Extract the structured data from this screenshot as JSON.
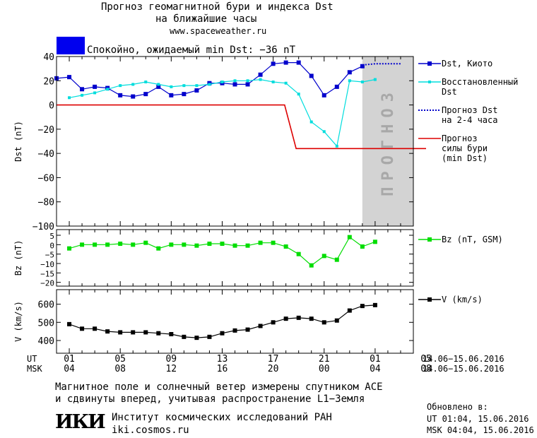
{
  "header": {
    "title1": "Прогноз геомагнитной бури и индекса Dst",
    "title2": "на ближайшие часы",
    "site": "www.spaceweather.ru",
    "status": "Спокойно, ожидаемый min Dst: −36 nT",
    "status_color": "#0000ee"
  },
  "footer": {
    "note1": "Магнитное поле и солнечный ветер измерены спутником ACE",
    "note2": "и сдвинуты вперед, учитывая распространение L1−Земля",
    "logo": "ИКИ",
    "institute": "Институт космических исследований РАН",
    "institute_site": "iki.cosmos.ru",
    "updated_label": "Обновлено в:",
    "updated_ut": "UT  01:04, 15.06.2016",
    "updated_msk": "MSK 04:04, 15.06.2016"
  },
  "chart_data": {
    "type": "line",
    "forecast_label": "ПРОГНОЗ",
    "time_axis": {
      "ut_label": "UT",
      "msk_label": "MSK",
      "ut_ticks": [
        "01",
        "05",
        "09",
        "13",
        "17",
        "21",
        "01",
        "05"
      ],
      "msk_ticks": [
        "04",
        "08",
        "12",
        "16",
        "20",
        "00",
        "04",
        "08"
      ],
      "range_text": "14.06−15.06.2016",
      "hour_range": [
        0,
        28
      ],
      "forecast_start_hour": 24
    },
    "panels": [
      {
        "ylabel": "Dst (nT)",
        "ylim": [
          -100,
          40
        ],
        "yticks": [
          -100,
          -80,
          -60,
          -40,
          -20,
          0,
          20,
          40
        ],
        "series": [
          {
            "name": "Dst, Киото",
            "color": "#0000cc",
            "style": "solid-square",
            "x": [
              0,
              1,
              2,
              3,
              4,
              5,
              6,
              7,
              8,
              9,
              10,
              11,
              12,
              13,
              14,
              15,
              16,
              17,
              18,
              19,
              20,
              21,
              22,
              23,
              24
            ],
            "values": [
              22,
              23,
              13,
              15,
              14,
              8,
              7,
              9,
              15,
              8,
              9,
              12,
              18,
              18,
              17,
              17,
              25,
              34,
              35,
              35,
              24,
              8,
              15,
              27,
              32
            ]
          },
          {
            "name": "Восстановленный Dst",
            "color": "#00dddd",
            "style": "solid-square-small",
            "x": [
              1,
              2,
              3,
              4,
              5,
              6,
              7,
              8,
              9,
              10,
              11,
              12,
              13,
              14,
              15,
              16,
              17,
              18,
              19,
              20,
              21,
              22,
              23,
              24,
              25
            ],
            "values": [
              6,
              8,
              10,
              13,
              16,
              17,
              19,
              17,
              15,
              16,
              16,
              17,
              19,
              20,
              20,
              21,
              19,
              18,
              9,
              -14,
              -22,
              -34,
              20,
              19,
              21
            ]
          },
          {
            "name": "Прогноз Dst на 2-4 часа",
            "color": "#0000cc",
            "style": "dotted",
            "x": [
              24,
              25,
              26,
              27
            ],
            "values": [
              33,
              34,
              34,
              34
            ]
          },
          {
            "name": "Прогноз силы бури (min Dst)",
            "color": "#dd0000",
            "style": "step",
            "x": [
              0,
              17.9,
              18.8,
              29
            ],
            "values": [
              0,
              0,
              -36,
              -36
            ]
          }
        ],
        "legend": [
          {
            "lines": [
              "Dst, Киото"
            ],
            "color": "#0000cc",
            "style": "solid-square"
          },
          {
            "lines": [
              "Восстановленный",
              "Dst"
            ],
            "color": "#00dddd",
            "style": "solid-square-small"
          },
          {
            "lines": [
              "Прогноз Dst",
              "на 2-4 часа"
            ],
            "color": "#0000cc",
            "style": "dotted"
          },
          {
            "lines": [
              "Прогноз",
              "силы бури",
              "(min Dst)"
            ],
            "color": "#dd0000",
            "style": "solid"
          }
        ]
      },
      {
        "ylabel": "Bz (nT)",
        "ylim": [
          -22,
          8
        ],
        "yticks": [
          -20,
          -15,
          -10,
          -5,
          0,
          5
        ],
        "series": [
          {
            "name": "Bz (nT, GSM)",
            "color": "#00dd00",
            "style": "solid-square",
            "x": [
              1,
              2,
              3,
              4,
              5,
              6,
              7,
              8,
              9,
              10,
              11,
              12,
              13,
              14,
              15,
              16,
              17,
              18,
              19,
              20,
              21,
              22,
              23,
              24,
              25
            ],
            "values": [
              -2,
              0,
              0,
              0,
              0.5,
              0,
              1,
              -2,
              0,
              0,
              -0.5,
              0.5,
              0.5,
              -0.5,
              -0.5,
              1,
              1,
              -1,
              -5,
              -11,
              -6,
              -8,
              4,
              -1,
              1.5
            ]
          }
        ],
        "legend": [
          {
            "lines": [
              "Bz (nT, GSM)"
            ],
            "color": "#00dd00",
            "style": "solid-square"
          }
        ]
      },
      {
        "ylabel": "V (km/s)",
        "ylim": [
          330,
          680
        ],
        "yticks": [
          400,
          500,
          600
        ],
        "series": [
          {
            "name": "V (km/s)",
            "color": "#000000",
            "style": "solid-square",
            "x": [
              1,
              2,
              3,
              4,
              5,
              6,
              7,
              8,
              9,
              10,
              11,
              12,
              13,
              14,
              15,
              16,
              17,
              18,
              19,
              20,
              21,
              22,
              23,
              24,
              25
            ],
            "values": [
              490,
              465,
              465,
              450,
              445,
              445,
              445,
              440,
              435,
              420,
              415,
              420,
              440,
              455,
              460,
              480,
              500,
              520,
              525,
              520,
              500,
              510,
              565,
              590,
              595
            ]
          }
        ],
        "legend": [
          {
            "lines": [
              "V (km/s)"
            ],
            "color": "#000000",
            "style": "solid-square"
          }
        ]
      }
    ]
  }
}
